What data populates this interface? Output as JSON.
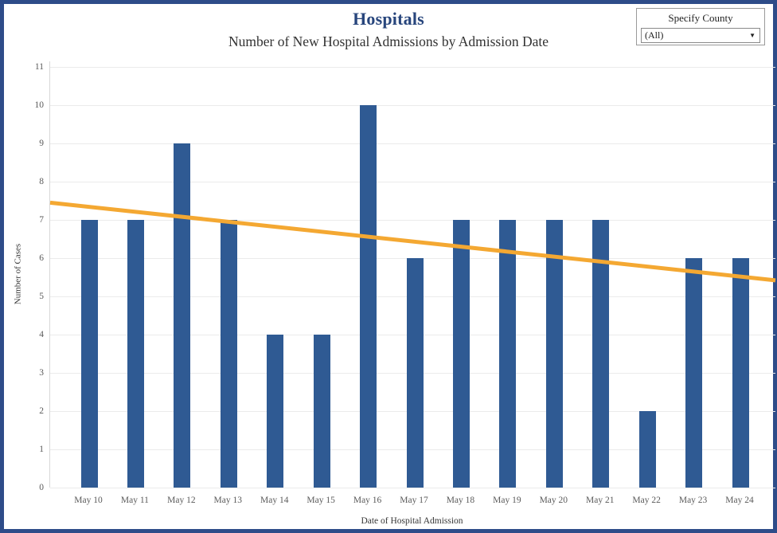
{
  "header": {
    "title": "Hospitals",
    "subtitle": "Number of New Hospital Admissions by Admission Date"
  },
  "filter": {
    "label": "Specify County",
    "selected_value": "(All)",
    "caret_icon": "▼"
  },
  "colors": {
    "page_border": "#2e4c89",
    "title": "#27457c",
    "bar": "#2f5a93",
    "trend": "#f4a832",
    "gridline": "#ebebeb"
  },
  "chart_data": {
    "type": "bar",
    "title": "Hospitals",
    "subtitle": "Number of New Hospital Admissions by Admission Date",
    "categories": [
      "May 10",
      "May 11",
      "May 12",
      "May 13",
      "May 14",
      "May 15",
      "May 16",
      "May 17",
      "May 18",
      "May 19",
      "May 20",
      "May 21",
      "May 22",
      "May 23",
      "May 24"
    ],
    "values": [
      7,
      7,
      9,
      7,
      4,
      4,
      10,
      6,
      7,
      7,
      7,
      7,
      2,
      6,
      6
    ],
    "xlabel": "Date of Hospital Admission",
    "ylabel": "Number of Cases",
    "ylim": [
      0,
      11
    ],
    "y_ticks": [
      0,
      1,
      2,
      3,
      4,
      5,
      6,
      7,
      8,
      9,
      10,
      11
    ],
    "grid": true,
    "legend": "none",
    "trend_line": {
      "type": "linear",
      "start_value": 7.45,
      "end_value": 5.42,
      "color": "#f4a832"
    },
    "bar_color": "#2f5a93"
  }
}
